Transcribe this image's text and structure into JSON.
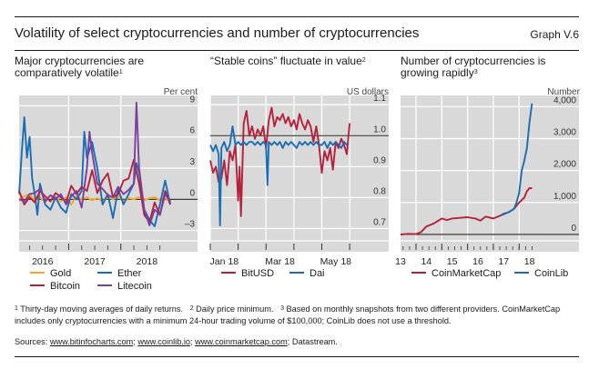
{
  "header": {
    "title": "Volatility of select cryptocurrencies and number of cryptocurrencies",
    "graph_number": "Graph V.6"
  },
  "colors": {
    "gold": "#f5a623",
    "ether": "#1a6db5",
    "bitcoin": "#b5203a",
    "litecoin": "#7b3fa0",
    "bitusd": "#b5203a",
    "dai": "#1a6db5",
    "coinmarketcap": "#b5203a",
    "coinlib": "#1a6db5",
    "plot_bg": "#d9d9d9",
    "grid": "#ffffff"
  },
  "chart_data": [
    {
      "type": "line",
      "title": "Major cryptocurrencies are comparatively volatile",
      "title_footnote": "1",
      "ylabel": "Per cent",
      "ylim": [
        -4,
        10
      ],
      "yticks": [
        9,
        6,
        3,
        0,
        -3
      ],
      "ytick_labels": [
        "9",
        "6",
        "3",
        "0",
        "–3"
      ],
      "xlim": [
        2015.3,
        2018.25
      ],
      "xtick_labels": [
        "2016",
        "2017",
        "2018"
      ],
      "xtick_positions": [
        2015.75,
        2016.75,
        2017.75
      ],
      "grid": true,
      "zero_line": 0,
      "legend": "bottom",
      "series": [
        {
          "name": "Gold",
          "color_key": "gold",
          "x": [
            2015.3,
            2015.4,
            2015.5,
            2015.6,
            2015.7,
            2015.8,
            2015.9,
            2016.0,
            2016.1,
            2016.2,
            2016.3,
            2016.4,
            2016.5,
            2016.6,
            2016.7,
            2016.8,
            2016.9,
            2017.0,
            2017.1,
            2017.2,
            2017.3,
            2017.4,
            2017.5,
            2017.6,
            2017.7,
            2017.8,
            2017.9,
            2018.0,
            2018.1,
            2018.2
          ],
          "y": [
            0.0,
            0.3,
            0.5,
            -0.1,
            0.2,
            -0.3,
            0.4,
            0.1,
            -0.2,
            0.2,
            -0.5,
            0.3,
            0.0,
            0.2,
            -0.1,
            0.1,
            -0.2,
            0.2,
            0.0,
            0.3,
            -0.2,
            0.1,
            0.0,
            0.2,
            -0.1,
            0.1,
            0.2,
            -0.1,
            0.1,
            -0.2
          ]
        },
        {
          "name": "Ether",
          "color_key": "ether",
          "x": [
            2015.3,
            2015.35,
            2015.4,
            2015.45,
            2015.5,
            2015.55,
            2015.6,
            2015.65,
            2015.7,
            2015.8,
            2015.9,
            2016.0,
            2016.1,
            2016.2,
            2016.3,
            2016.4,
            2016.5,
            2016.55,
            2016.6,
            2016.7,
            2016.8,
            2016.9,
            2017.0,
            2017.1,
            2017.2,
            2017.3,
            2017.4,
            2017.5,
            2017.55,
            2017.6,
            2017.7,
            2017.8,
            2017.9,
            2018.0,
            2018.1,
            2018.2
          ],
          "y": [
            0.5,
            4.5,
            7.9,
            4.0,
            6.0,
            2.0,
            0.5,
            -1.5,
            1.5,
            -0.5,
            -1.0,
            0.2,
            -0.8,
            -1.3,
            0.5,
            0.0,
            0.8,
            6.5,
            4.0,
            5.5,
            3.0,
            -0.5,
            0.5,
            -1.8,
            1.0,
            -0.5,
            0.5,
            1.5,
            3.5,
            2.5,
            -1.0,
            -2.0,
            -2.6,
            -0.5,
            1.8,
            -0.5
          ]
        },
        {
          "name": "Bitcoin",
          "color_key": "bitcoin",
          "x": [
            2015.3,
            2015.4,
            2015.5,
            2015.6,
            2015.7,
            2015.8,
            2015.9,
            2016.0,
            2016.1,
            2016.2,
            2016.3,
            2016.4,
            2016.5,
            2016.6,
            2016.7,
            2016.8,
            2016.9,
            2017.0,
            2017.1,
            2017.2,
            2017.3,
            2017.4,
            2017.5,
            2017.6,
            2017.7,
            2017.8,
            2017.9,
            2018.0,
            2018.1,
            2018.2
          ],
          "y": [
            0.8,
            -0.5,
            0.2,
            -0.3,
            0.8,
            0.3,
            -0.2,
            0.6,
            0.2,
            -0.3,
            1.3,
            0.5,
            1.2,
            0.8,
            2.8,
            0.6,
            1.8,
            2.5,
            0.2,
            0.5,
            1.8,
            2.0,
            3.8,
            1.5,
            -1.5,
            -2.2,
            -0.3,
            -1.5,
            0.8,
            -0.5
          ]
        },
        {
          "name": "Litecoin",
          "color_key": "litecoin",
          "x": [
            2015.3,
            2015.4,
            2015.5,
            2015.6,
            2015.7,
            2015.8,
            2015.9,
            2016.0,
            2016.1,
            2016.2,
            2016.3,
            2016.4,
            2016.5,
            2016.6,
            2016.65,
            2016.7,
            2016.8,
            2016.9,
            2017.0,
            2017.1,
            2017.2,
            2017.3,
            2017.4,
            2017.5,
            2017.55,
            2017.6,
            2017.7,
            2017.8,
            2017.9,
            2018.0,
            2018.1,
            2018.2
          ],
          "y": [
            0.0,
            -0.2,
            0.5,
            0.6,
            1.0,
            -0.2,
            0.4,
            0.0,
            0.5,
            -0.5,
            0.3,
            0.8,
            -0.8,
            3.0,
            6.5,
            4.5,
            1.5,
            1.0,
            0.4,
            0.2,
            1.2,
            0.5,
            0.9,
            1.5,
            9.3,
            3.0,
            -1.0,
            -2.5,
            -1.0,
            -1.5,
            0.5,
            -0.2
          ]
        }
      ]
    },
    {
      "type": "line",
      "title": "“Stable coins” fluctuate in value",
      "title_footnote": "2",
      "ylabel": "US dollars",
      "ylim": [
        0.66,
        1.13
      ],
      "yticks": [
        1.1,
        1.0,
        0.9,
        0.8,
        0.7
      ],
      "ytick_labels": [
        "1.1",
        "1.0",
        "0.9",
        "0.8",
        "0.7"
      ],
      "xlim": [
        0,
        5.65
      ],
      "xtick_labels": [
        "Jan 18",
        "Mar 18",
        "May 18"
      ],
      "xtick_positions": [
        0.5,
        2.5,
        4.5
      ],
      "x_grid_months": [
        0,
        1,
        2,
        3,
        4,
        5
      ],
      "grid": true,
      "ref_line": 1.0,
      "legend": "bottom",
      "series": [
        {
          "name": "BitUSD",
          "color_key": "bitusd",
          "x": [
            0,
            0.1,
            0.2,
            0.3,
            0.4,
            0.5,
            0.6,
            0.7,
            0.8,
            0.9,
            1.0,
            1.05,
            1.1,
            1.2,
            1.3,
            1.4,
            1.5,
            1.6,
            1.7,
            1.8,
            1.9,
            2.0,
            2.1,
            2.2,
            2.3,
            2.4,
            2.5,
            2.6,
            2.7,
            2.8,
            2.9,
            3.0,
            3.1,
            3.2,
            3.3,
            3.4,
            3.5,
            3.6,
            3.7,
            3.8,
            3.9,
            4.0,
            4.1,
            4.2,
            4.3,
            4.4,
            4.5,
            4.6,
            4.7,
            4.8,
            4.9,
            5.0
          ],
          "y": [
            0.92,
            0.88,
            0.9,
            0.85,
            0.86,
            0.92,
            0.84,
            0.95,
            0.92,
            0.97,
            0.79,
            0.9,
            0.74,
            1.04,
            1.08,
            1.0,
            1.03,
            0.99,
            1.02,
            1.0,
            1.03,
            0.96,
            1.05,
            1.09,
            1.03,
            1.06,
            1.05,
            1.07,
            1.04,
            1.06,
            1.03,
            1.05,
            1.02,
            1.07,
            1.04,
            1.02,
            1.05,
            1.03,
            0.98,
            1.03,
            0.97,
            0.88,
            0.95,
            0.92,
            0.96,
            0.89,
            0.98,
            0.96,
            0.99,
            0.97,
            0.94,
            1.04
          ]
        },
        {
          "name": "Dai",
          "color_key": "dai",
          "x": [
            0,
            0.1,
            0.2,
            0.3,
            0.35,
            0.4,
            0.5,
            0.6,
            0.7,
            0.8,
            0.9,
            1.0,
            1.1,
            1.2,
            1.3,
            1.4,
            1.5,
            1.6,
            1.7,
            1.8,
            1.9,
            2.0,
            2.05,
            2.1,
            2.2,
            2.3,
            2.4,
            2.5,
            2.6,
            2.7,
            2.8,
            2.9,
            3.0,
            3.1,
            3.2,
            3.3,
            3.4,
            3.5,
            3.6,
            3.7,
            3.8,
            3.9,
            4.0,
            4.1,
            4.2,
            4.3,
            4.4,
            4.5,
            4.6,
            4.7,
            4.8,
            4.9
          ],
          "y": [
            0.97,
            0.95,
            0.97,
            0.94,
            0.71,
            0.96,
            0.98,
            0.95,
            0.97,
            1.03,
            0.97,
            0.98,
            0.97,
            0.98,
            0.97,
            0.98,
            0.98,
            0.97,
            0.98,
            0.97,
            0.98,
            0.97,
            0.84,
            0.98,
            0.97,
            0.98,
            0.97,
            0.98,
            0.96,
            0.98,
            0.97,
            0.98,
            0.97,
            0.96,
            0.98,
            0.97,
            0.98,
            0.97,
            0.98,
            0.97,
            0.98,
            0.97,
            0.97,
            0.98,
            0.96,
            0.98,
            0.97,
            0.98,
            0.97,
            0.96,
            0.98,
            0.97
          ]
        }
      ]
    },
    {
      "type": "line",
      "title": "Number of cryptocurrencies is growing rapidly",
      "title_footnote": "3",
      "ylabel": "Number",
      "ylim": [
        -200,
        4350
      ],
      "yticks": [
        4000,
        3000,
        2000,
        1000,
        0
      ],
      "ytick_labels": [
        "4,000",
        "3,000",
        "2,000",
        "1,000",
        "0"
      ],
      "xlim": [
        2013.0,
        2019.25
      ],
      "xtick_labels": [
        "13",
        "14",
        "15",
        "16",
        "17",
        "18"
      ],
      "xtick_positions": [
        2013.0,
        2014.0,
        2015.0,
        2016.0,
        2017.0,
        2018.0
      ],
      "x_grid_years": [
        2013.6,
        2014.6,
        2015.6,
        2016.6,
        2017.6
      ],
      "grid": true,
      "zero_line": 0,
      "legend": "bottom",
      "series": [
        {
          "name": "CoinMarketCap",
          "color_key": "coinmarketcap",
          "x": [
            2013.0,
            2013.3,
            2013.6,
            2013.8,
            2014.0,
            2014.3,
            2014.6,
            2014.8,
            2015.0,
            2015.3,
            2015.6,
            2015.9,
            2016.1,
            2016.3,
            2016.6,
            2016.9,
            2017.0,
            2017.2,
            2017.4,
            2017.6,
            2017.8,
            2017.9,
            2018.0,
            2018.1
          ],
          "y": [
            0,
            20,
            10,
            80,
            250,
            350,
            500,
            450,
            500,
            520,
            540,
            500,
            430,
            560,
            500,
            600,
            650,
            700,
            800,
            1000,
            1150,
            1350,
            1450,
            1450
          ]
        },
        {
          "name": "CoinLib",
          "color_key": "coinlib",
          "x": [
            2016.9,
            2017.0,
            2017.2,
            2017.4,
            2017.5,
            2017.6,
            2017.7,
            2017.8,
            2017.9,
            2018.0,
            2018.1
          ],
          "y": [
            600,
            630,
            700,
            800,
            1000,
            1300,
            2000,
            2300,
            2700,
            3500,
            4100
          ]
        }
      ]
    }
  ],
  "legends": [
    [
      {
        "label": "Gold",
        "color_key": "gold"
      },
      {
        "label": "Ether",
        "color_key": "ether"
      },
      {
        "label": "Bitcoin",
        "color_key": "bitcoin"
      },
      {
        "label": "Litecoin",
        "color_key": "litecoin"
      }
    ],
    [
      {
        "label": "BitUSD",
        "color_key": "bitusd"
      },
      {
        "label": "Dai",
        "color_key": "dai"
      }
    ],
    [
      {
        "label": "CoinMarketCap",
        "color_key": "coinmarketcap"
      },
      {
        "label": "CoinLib",
        "color_key": "coinlib"
      }
    ]
  ],
  "footnotes": {
    "n1_mark": "1",
    "n1": " Thirty-day moving averages of daily returns.",
    "n2_mark": "2",
    "n2": " Daily price minimum.",
    "n3_mark": "3",
    "n3": " Based on monthly snapshots from two different providers. CoinMarketCap includes only cryptocurrencies with a minimum 24-hour trading volume of $100,000; CoinLib does not use a threshold."
  },
  "sources": {
    "prefix": "Sources: ",
    "links": [
      "www.bitinfocharts.com",
      "www.coinlib.io",
      "www.coinmarketcap.com"
    ],
    "sep": "; ",
    "suffix": "; Datastream."
  }
}
